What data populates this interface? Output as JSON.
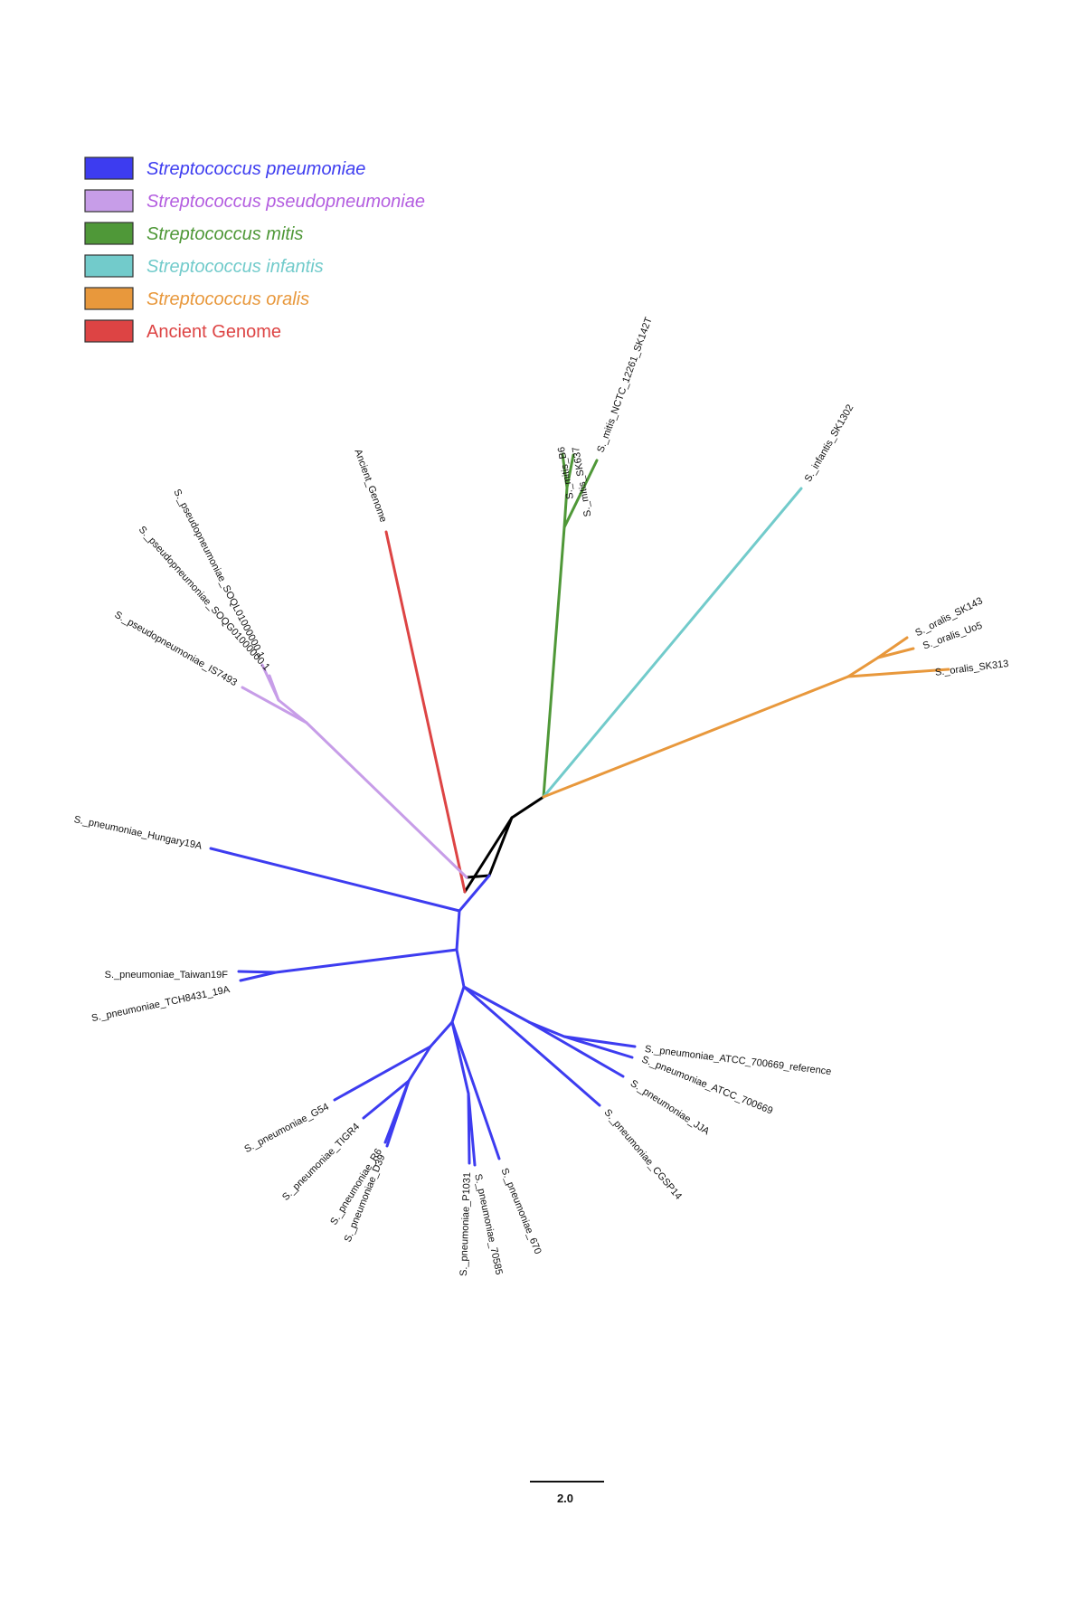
{
  "colors": {
    "pneumoniae": "#3d3cf0",
    "pseudopneumoniae": "#c79de8",
    "mitis": "#4f9838",
    "infantis": "#72cbcb",
    "oralis": "#e8983c",
    "ancient": "#dd4444",
    "root": "#000000"
  },
  "legend": [
    {
      "label": "Streptococcus pneumoniae",
      "color": "#3d3cf0",
      "text_color": "#3d3cf0",
      "italic": true
    },
    {
      "label": "Streptococcus pseudopneumoniae",
      "color": "#c79de8",
      "text_color": "#b45ee0",
      "italic": true
    },
    {
      "label": "Streptococcus mitis",
      "color": "#4f9838",
      "text_color": "#4f9838",
      "italic": true
    },
    {
      "label": "Streptococcus infantis",
      "color": "#72cbcb",
      "text_color": "#72cbcb",
      "italic": true
    },
    {
      "label": "Streptococcus oralis",
      "color": "#e8983c",
      "text_color": "#e8983c",
      "italic": true
    },
    {
      "label": "Ancient Genome",
      "color": "#dd4444",
      "text_color": "#dd4444",
      "italic": false
    }
  ],
  "leaves": [
    {
      "name": "S._mitis_B6",
      "group": "mitis"
    },
    {
      "name": "S._mitis_SK637",
      "group": "mitis"
    },
    {
      "name": "S._mitis_NCTC_12261_SK142T",
      "group": "mitis"
    },
    {
      "name": "S._infantis_SK1302",
      "group": "infantis"
    },
    {
      "name": "S._oralis_SK143",
      "group": "oralis"
    },
    {
      "name": "S._oralis_Uo5",
      "group": "oralis"
    },
    {
      "name": "S._oralis_SK313",
      "group": "oralis"
    },
    {
      "name": "Ancient_Genome",
      "group": "ancient"
    },
    {
      "name": "S._pseudopneumoniae_SOQL01000000.1",
      "group": "pseudopneumoniae"
    },
    {
      "name": "S._pseudopneumoniae_SOQG01000000.1",
      "group": "pseudopneumoniae"
    },
    {
      "name": "S._pseudopneumoniae_IS7493",
      "group": "pseudopneumoniae"
    },
    {
      "name": "S._pneumoniae_Hungary19A",
      "group": "pneumoniae"
    },
    {
      "name": "S._pneumoniae_Taiwan19F",
      "group": "pneumoniae"
    },
    {
      "name": "S._pneumoniae_TCH8431_19A",
      "group": "pneumoniae"
    },
    {
      "name": "S._pneumoniae_ATCC_700669_reference",
      "group": "pneumoniae"
    },
    {
      "name": "S._pneumoniae_ATCC_700669",
      "group": "pneumoniae"
    },
    {
      "name": "S._pneumoniae_JJA",
      "group": "pneumoniae"
    },
    {
      "name": "S._pneumoniae_CGSP14",
      "group": "pneumoniae"
    },
    {
      "name": "S._pneumoniae_G54",
      "group": "pneumoniae"
    },
    {
      "name": "S._pneumoniae_TIGR4",
      "group": "pneumoniae"
    },
    {
      "name": "S._pneumoniae_R6",
      "group": "pneumoniae"
    },
    {
      "name": "S._pneumoniae_D39",
      "group": "pneumoniae"
    },
    {
      "name": "S._pneumoniae_P1031",
      "group": "pneumoniae"
    },
    {
      "name": "S._pneumoniae_70585",
      "group": "pneumoniae"
    },
    {
      "name": "S._pneumoniae_670",
      "group": "pneumoniae"
    }
  ],
  "scale_bar": {
    "label": "2.0",
    "length": 2.0
  }
}
